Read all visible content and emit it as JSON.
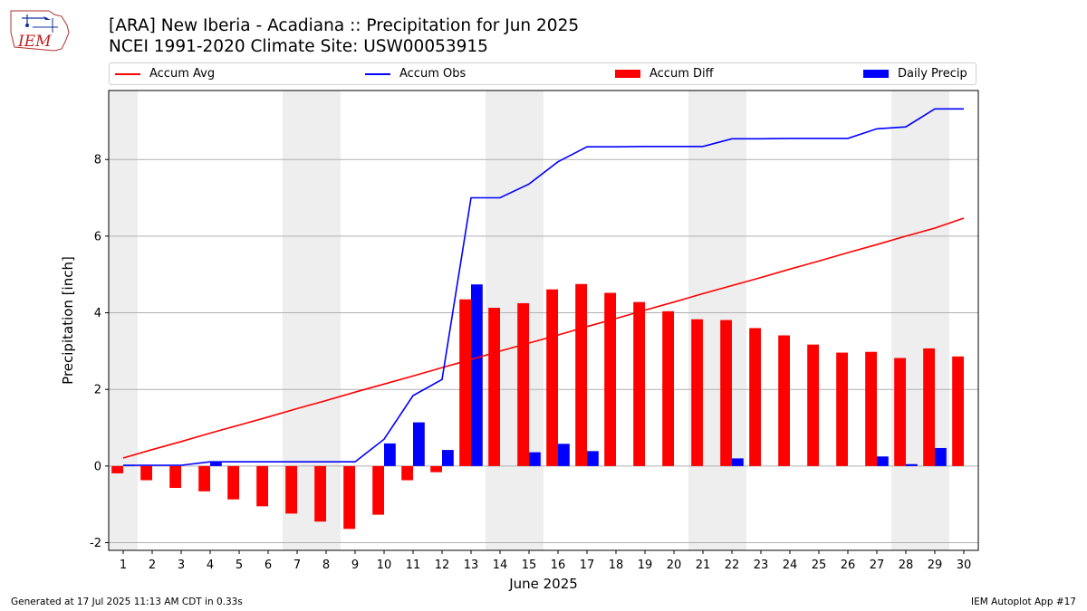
{
  "header": {
    "logo_text": "IEM",
    "title": "[ARA] New Iberia - Acadiana :: Precipitation for Jun 2025",
    "subtitle": "NCEI 1991-2020 Climate Site: USW00053915"
  },
  "footer": {
    "generated": "Generated at 17 Jul 2025 11:13 AM CDT in 0.33s",
    "app": "IEM Autoplot App #17"
  },
  "colors": {
    "accum_avg": "#ff0000",
    "accum_obs": "#0000ff",
    "accum_diff": "#ff0000",
    "daily_precip": "#0000ff",
    "weekend_shade": "#eeeeee",
    "grid": "#b0b0b0"
  },
  "chart_data": {
    "type": "bar",
    "title": "[ARA] New Iberia - Acadiana :: Precipitation for Jun 2025",
    "subtitle": "NCEI 1991-2020 Climate Site: USW00053915",
    "xlabel": "June 2025",
    "ylabel": "Precipitation [inch]",
    "x": [
      1,
      2,
      3,
      4,
      5,
      6,
      7,
      8,
      9,
      10,
      11,
      12,
      13,
      14,
      15,
      16,
      17,
      18,
      19,
      20,
      21,
      22,
      23,
      24,
      25,
      26,
      27,
      28,
      29,
      30
    ],
    "ylim": [
      -2.2,
      9.8
    ],
    "yticks": [
      -2,
      0,
      2,
      4,
      6,
      8
    ],
    "grid": "horizontal",
    "legend_placement": "top",
    "weekend_days": [
      1,
      7,
      8,
      14,
      15,
      21,
      22,
      28,
      29
    ],
    "series": [
      {
        "name": "Accum Avg",
        "kind": "line",
        "values": [
          0.21,
          0.43,
          0.64,
          0.86,
          1.07,
          1.28,
          1.5,
          1.71,
          1.93,
          2.14,
          2.35,
          2.57,
          2.78,
          3.0,
          3.21,
          3.42,
          3.64,
          3.85,
          4.07,
          4.28,
          4.5,
          4.71,
          4.92,
          5.14,
          5.35,
          5.57,
          5.78,
          6.0,
          6.21,
          6.47
        ]
      },
      {
        "name": "Accum Obs",
        "kind": "line",
        "values": [
          0.02,
          0.02,
          0.02,
          0.11,
          0.11,
          0.11,
          0.11,
          0.11,
          0.11,
          0.7,
          1.84,
          2.26,
          7.0,
          7.0,
          7.36,
          7.94,
          8.33,
          8.33,
          8.34,
          8.34,
          8.34,
          8.54,
          8.54,
          8.55,
          8.55,
          8.55,
          8.8,
          8.85,
          9.32,
          9.32
        ]
      },
      {
        "name": "Accum Diff",
        "kind": "bar",
        "values": [
          -0.19,
          -0.37,
          -0.57,
          -0.66,
          -0.87,
          -1.05,
          -1.24,
          -1.45,
          -1.64,
          -1.27,
          -0.37,
          -0.16,
          4.35,
          4.13,
          4.25,
          4.61,
          4.75,
          4.52,
          4.28,
          4.04,
          3.83,
          3.81,
          3.6,
          3.41,
          3.17,
          2.96,
          2.98,
          2.82,
          3.07,
          2.86
        ]
      },
      {
        "name": "Daily Precip",
        "kind": "bar",
        "values": [
          0.02,
          0.0,
          0.0,
          0.09,
          0.0,
          0.0,
          0.0,
          0.0,
          0.0,
          0.59,
          1.14,
          0.42,
          4.74,
          0.0,
          0.36,
          0.58,
          0.39,
          0.0,
          0.0,
          0.0,
          0.0,
          0.2,
          0.0,
          0.0,
          0.0,
          0.0,
          0.25,
          0.05,
          0.47,
          0.0
        ]
      }
    ]
  }
}
